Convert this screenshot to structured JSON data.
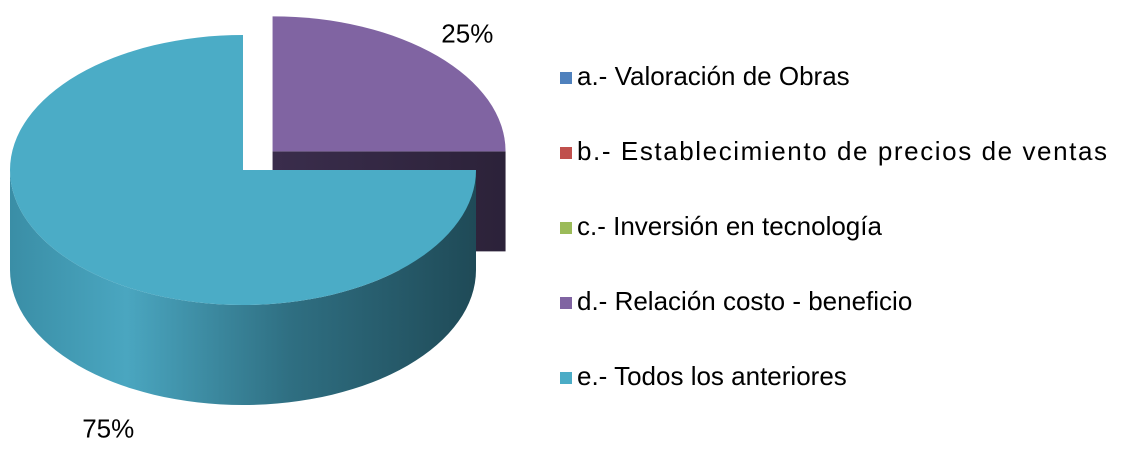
{
  "chart_data": {
    "type": "pie",
    "categories": [
      "a.- Valoración de Obras",
      "b.- Establecimiento de precios de ventas",
      "c.- Inversión en tecnología",
      "d.- Relación costo - beneficio",
      "e.- Todos los anteriores"
    ],
    "values": [
      0,
      0,
      0,
      25,
      75
    ],
    "value_labels": [
      null,
      null,
      null,
      "25%",
      "75%"
    ],
    "colors": [
      "#4f81bd",
      "#c0504d",
      "#9bbb59",
      "#8064a2",
      "#4bacc6"
    ],
    "legend": "right"
  }
}
